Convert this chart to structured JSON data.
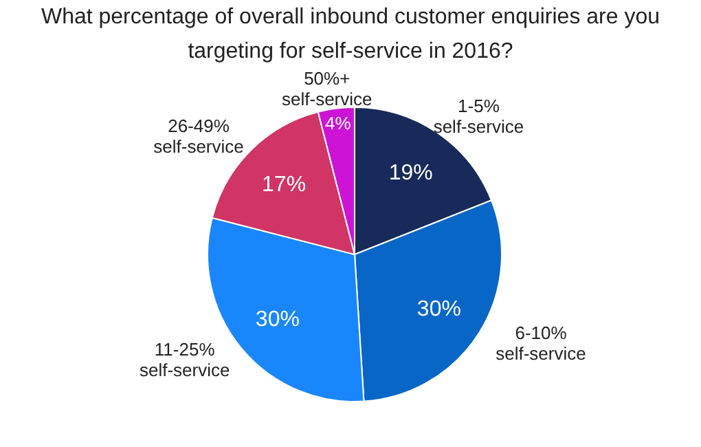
{
  "chart_data": {
    "type": "pie",
    "title": "What percentage of overall inbound customer enquiries are you targeting for self-service in 2016?",
    "categories": [
      "1-5% self-service",
      "6-10% self-service",
      "11-25% self-service",
      "26-49% self-service",
      "50%+ self-service"
    ],
    "values": [
      19,
      30,
      30,
      17,
      4
    ],
    "value_labels": [
      "19%",
      "30%",
      "30%",
      "17%",
      "4%"
    ],
    "colors": [
      "#172a5a",
      "#0866c6",
      "#1987fb",
      "#d03565",
      "#cc13d6"
    ],
    "legend": false
  }
}
